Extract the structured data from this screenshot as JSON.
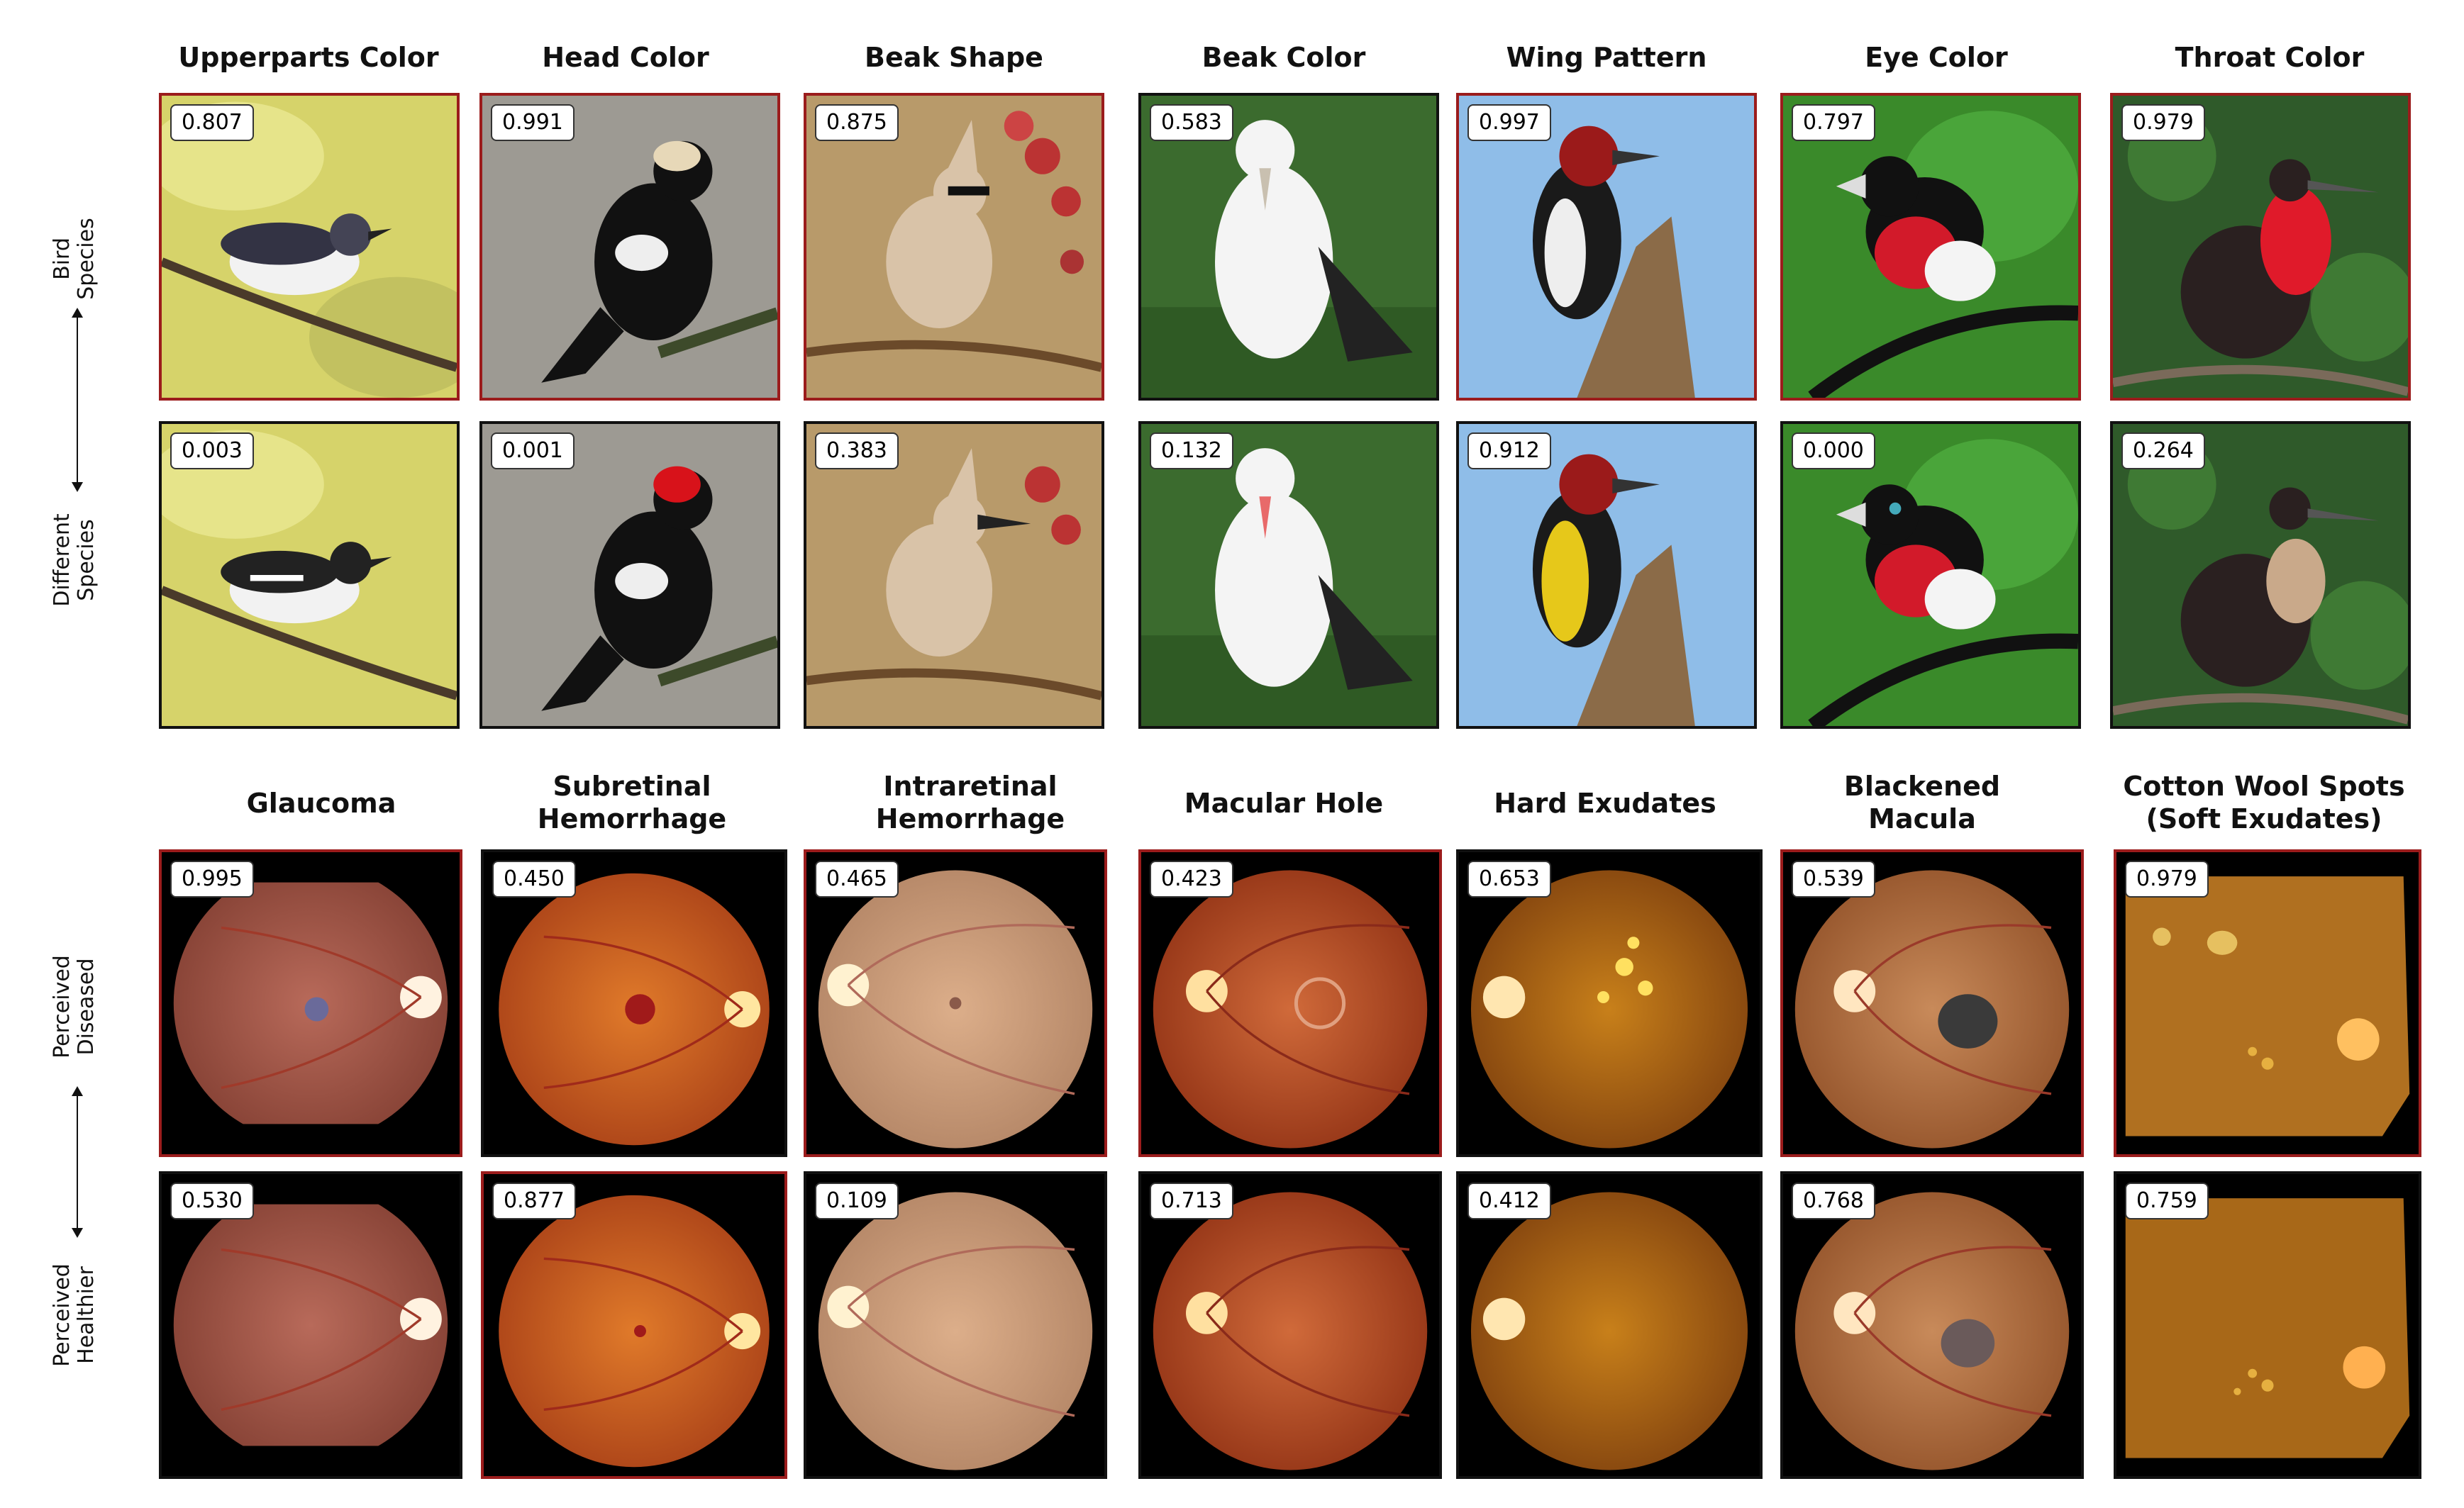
{
  "birds": {
    "columns": [
      "Upperparts Color",
      "Head Color",
      "Beak Shape",
      "Beak Color",
      "Wing Pattern",
      "Eye Color",
      "Throat Color"
    ],
    "row_labels": {
      "top": [
        "Bird",
        "Species"
      ],
      "bottom": [
        "Different",
        "Species"
      ]
    },
    "top_scores": [
      "0.807",
      "0.991",
      "0.875",
      "0.583",
      "0.997",
      "0.797",
      "0.979"
    ],
    "bottom_scores": [
      "0.003",
      "0.001",
      "0.383",
      "0.132",
      "0.912",
      "0.000",
      "0.264"
    ]
  },
  "retina": {
    "columns": [
      [
        "Glaucoma"
      ],
      [
        "Subretinal",
        "Hemorrhage"
      ],
      [
        "Intraretinal",
        "Hemorrhage"
      ],
      [
        "Macular Hole"
      ],
      [
        "Hard Exudates"
      ],
      [
        "Blackened",
        "Macula"
      ],
      [
        "Cotton Wool Spots",
        "(Soft Exudates)"
      ]
    ],
    "row_labels": {
      "top": [
        "Perceived",
        "Diseased"
      ],
      "bottom": [
        "Perceived",
        "Healthier"
      ]
    },
    "top_scores": [
      "0.995",
      "0.450",
      "0.465",
      "0.423",
      "0.653",
      "0.539",
      "0.979"
    ],
    "bottom_scores": [
      "0.530",
      "0.877",
      "0.109",
      "0.713",
      "0.412",
      "0.768",
      "0.759"
    ]
  },
  "colors": {
    "selected_border": "#9b1c1c",
    "default_border": "#111111"
  }
}
